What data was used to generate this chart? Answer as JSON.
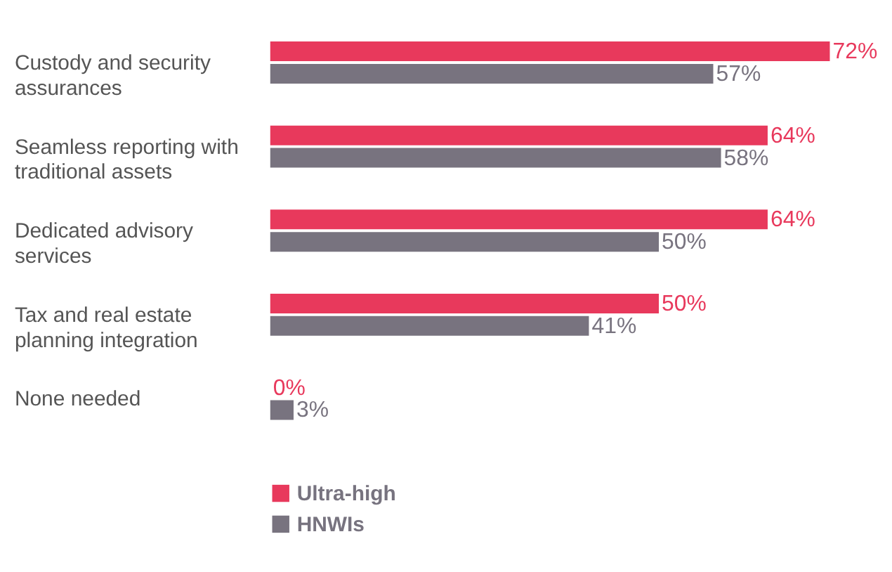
{
  "chart_data": {
    "type": "bar",
    "orientation": "horizontal",
    "categories": [
      "Custody and security assurances",
      "Seamless reporting with traditional assets",
      "Dedicated advisory services",
      "Tax and real estate planning integration",
      "None needed"
    ],
    "series": [
      {
        "name": "Ultra-high",
        "color": "#e8395c",
        "values": [
          72,
          64,
          64,
          50,
          0
        ],
        "value_labels": [
          "72%",
          "64%",
          "64%",
          "50%",
          "0%"
        ]
      },
      {
        "name": "HNWIs",
        "color": "#78737f",
        "values": [
          57,
          58,
          50,
          41,
          3
        ],
        "value_labels": [
          "57%",
          "58%",
          "50%",
          "41%",
          "3%"
        ]
      }
    ],
    "legend": "bottom left",
    "grid": false
  }
}
